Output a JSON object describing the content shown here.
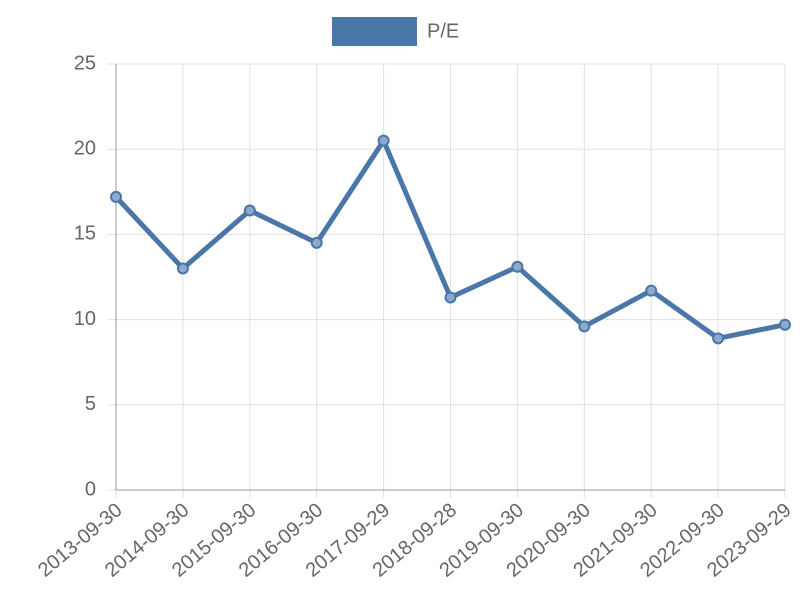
{
  "chart_data": {
    "type": "line",
    "categories": [
      "2013-09-30",
      "2014-09-30",
      "2015-09-30",
      "2016-09-30",
      "2017-09-29",
      "2018-09-28",
      "2019-09-30",
      "2020-09-30",
      "2021-09-30",
      "2022-09-30",
      "2023-09-29"
    ],
    "series": [
      {
        "name": "P/E",
        "color": "#4a76a8",
        "values": [
          17.2,
          13.0,
          16.4,
          14.5,
          20.5,
          11.3,
          13.1,
          9.6,
          11.7,
          8.9,
          9.7
        ]
      }
    ],
    "ylim": [
      0,
      25
    ],
    "yticks": [
      0,
      5,
      10,
      15,
      20,
      25
    ],
    "grid": true,
    "legend": "top"
  }
}
